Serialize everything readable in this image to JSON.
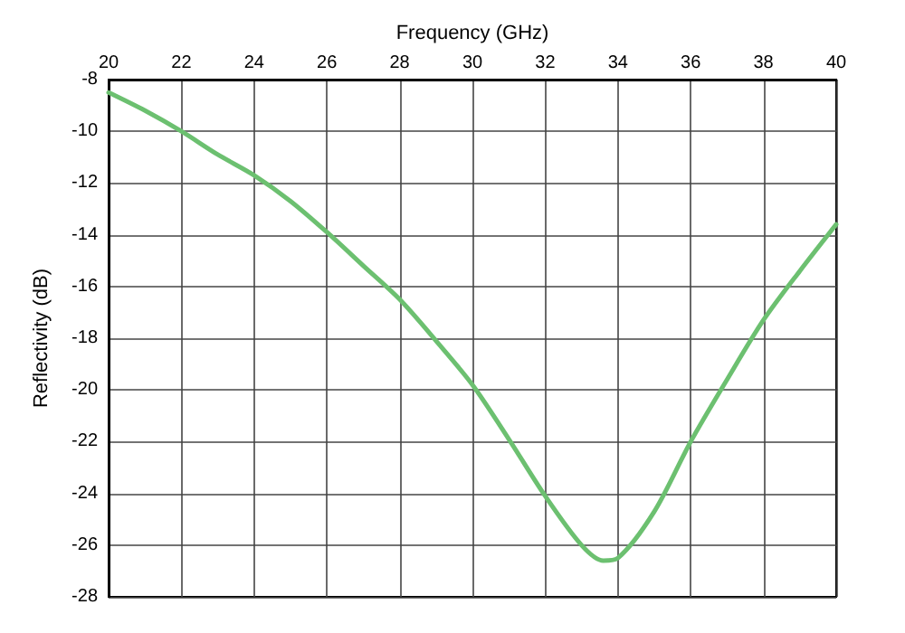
{
  "chart_data": {
    "type": "line",
    "xlabel": "Frequency (GHz)",
    "ylabel": "Reflectivity (dB)",
    "x": [
      20,
      21,
      22,
      23,
      24,
      25,
      26,
      27,
      28,
      29,
      30,
      31,
      32,
      33,
      33.6,
      34,
      35,
      36,
      37,
      38,
      39,
      40
    ],
    "series": [
      {
        "color": "#6cc070",
        "values": [
          -8.5,
          -9.2,
          -10.0,
          -10.9,
          -11.7,
          -12.7,
          -13.9,
          -15.2,
          -16.5,
          -18.1,
          -19.8,
          -21.9,
          -24.1,
          -26.0,
          -26.6,
          -26.5,
          -24.7,
          -22.0,
          -19.6,
          -17.3,
          -15.4,
          -13.6
        ]
      }
    ],
    "xlim": [
      20,
      40
    ],
    "xticks": [
      20,
      22,
      24,
      26,
      28,
      30,
      32,
      34,
      36,
      38,
      40
    ],
    "ylim": [
      -28,
      -8
    ],
    "yticks": [
      -28,
      -26,
      -24,
      -22,
      -20,
      -18,
      -16,
      -14,
      -12,
      -10,
      -8
    ],
    "grid": true,
    "marker": "none",
    "line_style": "solid"
  }
}
